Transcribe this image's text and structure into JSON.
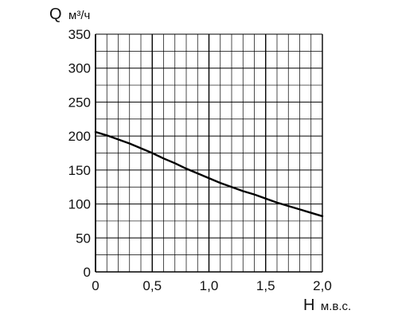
{
  "chart_data": {
    "type": "line",
    "xlabel": "H м.в.с.",
    "ylabel": "Q м³/ч",
    "xlabel_main": "H",
    "xlabel_unit": "м.в.с.",
    "ylabel_main": "Q",
    "ylabel_unit": "м³/ч",
    "xlim": [
      0,
      2.0
    ],
    "ylim": [
      0,
      350
    ],
    "x_ticks": [
      {
        "value": 0,
        "label": "0"
      },
      {
        "value": 0.5,
        "label": "0,5"
      },
      {
        "value": 1.0,
        "label": "1,0"
      },
      {
        "value": 1.5,
        "label": "1,5"
      },
      {
        "value": 2.0,
        "label": "2,0"
      }
    ],
    "y_ticks": [
      {
        "value": 0,
        "label": "0"
      },
      {
        "value": 50,
        "label": "50"
      },
      {
        "value": 100,
        "label": "100"
      },
      {
        "value": 150,
        "label": "150"
      },
      {
        "value": 200,
        "label": "200"
      },
      {
        "value": 250,
        "label": "250"
      },
      {
        "value": 300,
        "label": "300"
      },
      {
        "value": 350,
        "label": "350"
      }
    ],
    "grid": true,
    "grid_minor_x_step": 0.1,
    "grid_minor_y_step": 25,
    "series": [
      {
        "x": [
          0,
          0.1,
          0.2,
          0.3,
          0.4,
          0.5,
          0.6,
          0.7,
          0.8,
          0.9,
          1.0,
          1.1,
          1.2,
          1.3,
          1.4,
          1.5,
          1.6,
          1.7,
          1.8,
          1.9,
          2.0
        ],
        "y": [
          206,
          201,
          195,
          189,
          182,
          175,
          167,
          160,
          152,
          145,
          138,
          131,
          125,
          119,
          114,
          108,
          102,
          97,
          92,
          87,
          82
        ]
      }
    ],
    "colors": {
      "line": "#000000",
      "grid": "#000000",
      "text": "#111111"
    }
  }
}
